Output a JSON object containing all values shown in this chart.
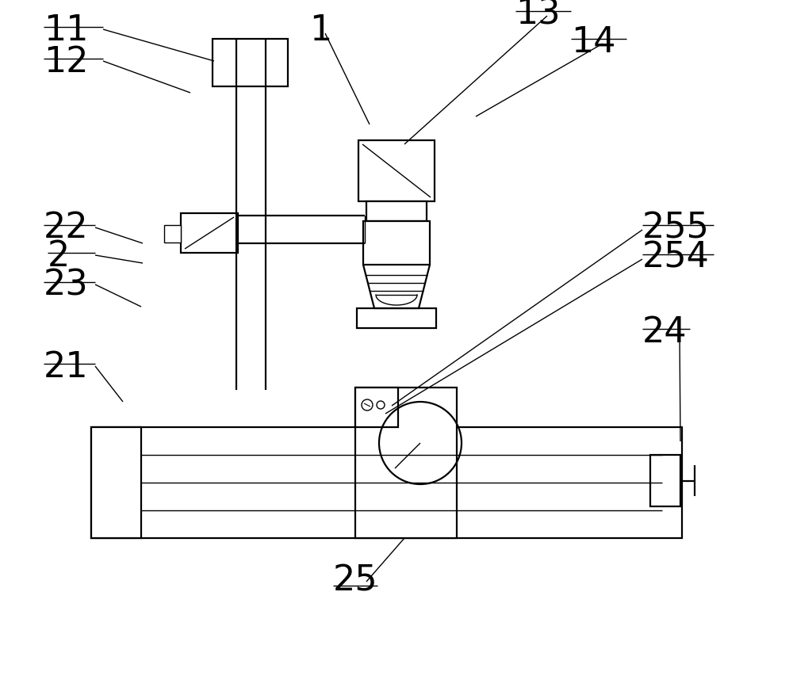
{
  "bg": "#ffffff",
  "lc": "#000000",
  "lw": 1.6,
  "lw_thin": 1.0,
  "fig_w": 10.0,
  "fig_h": 8.78,
  "dpi": 100,
  "fs": 32,
  "fs_label": 30
}
